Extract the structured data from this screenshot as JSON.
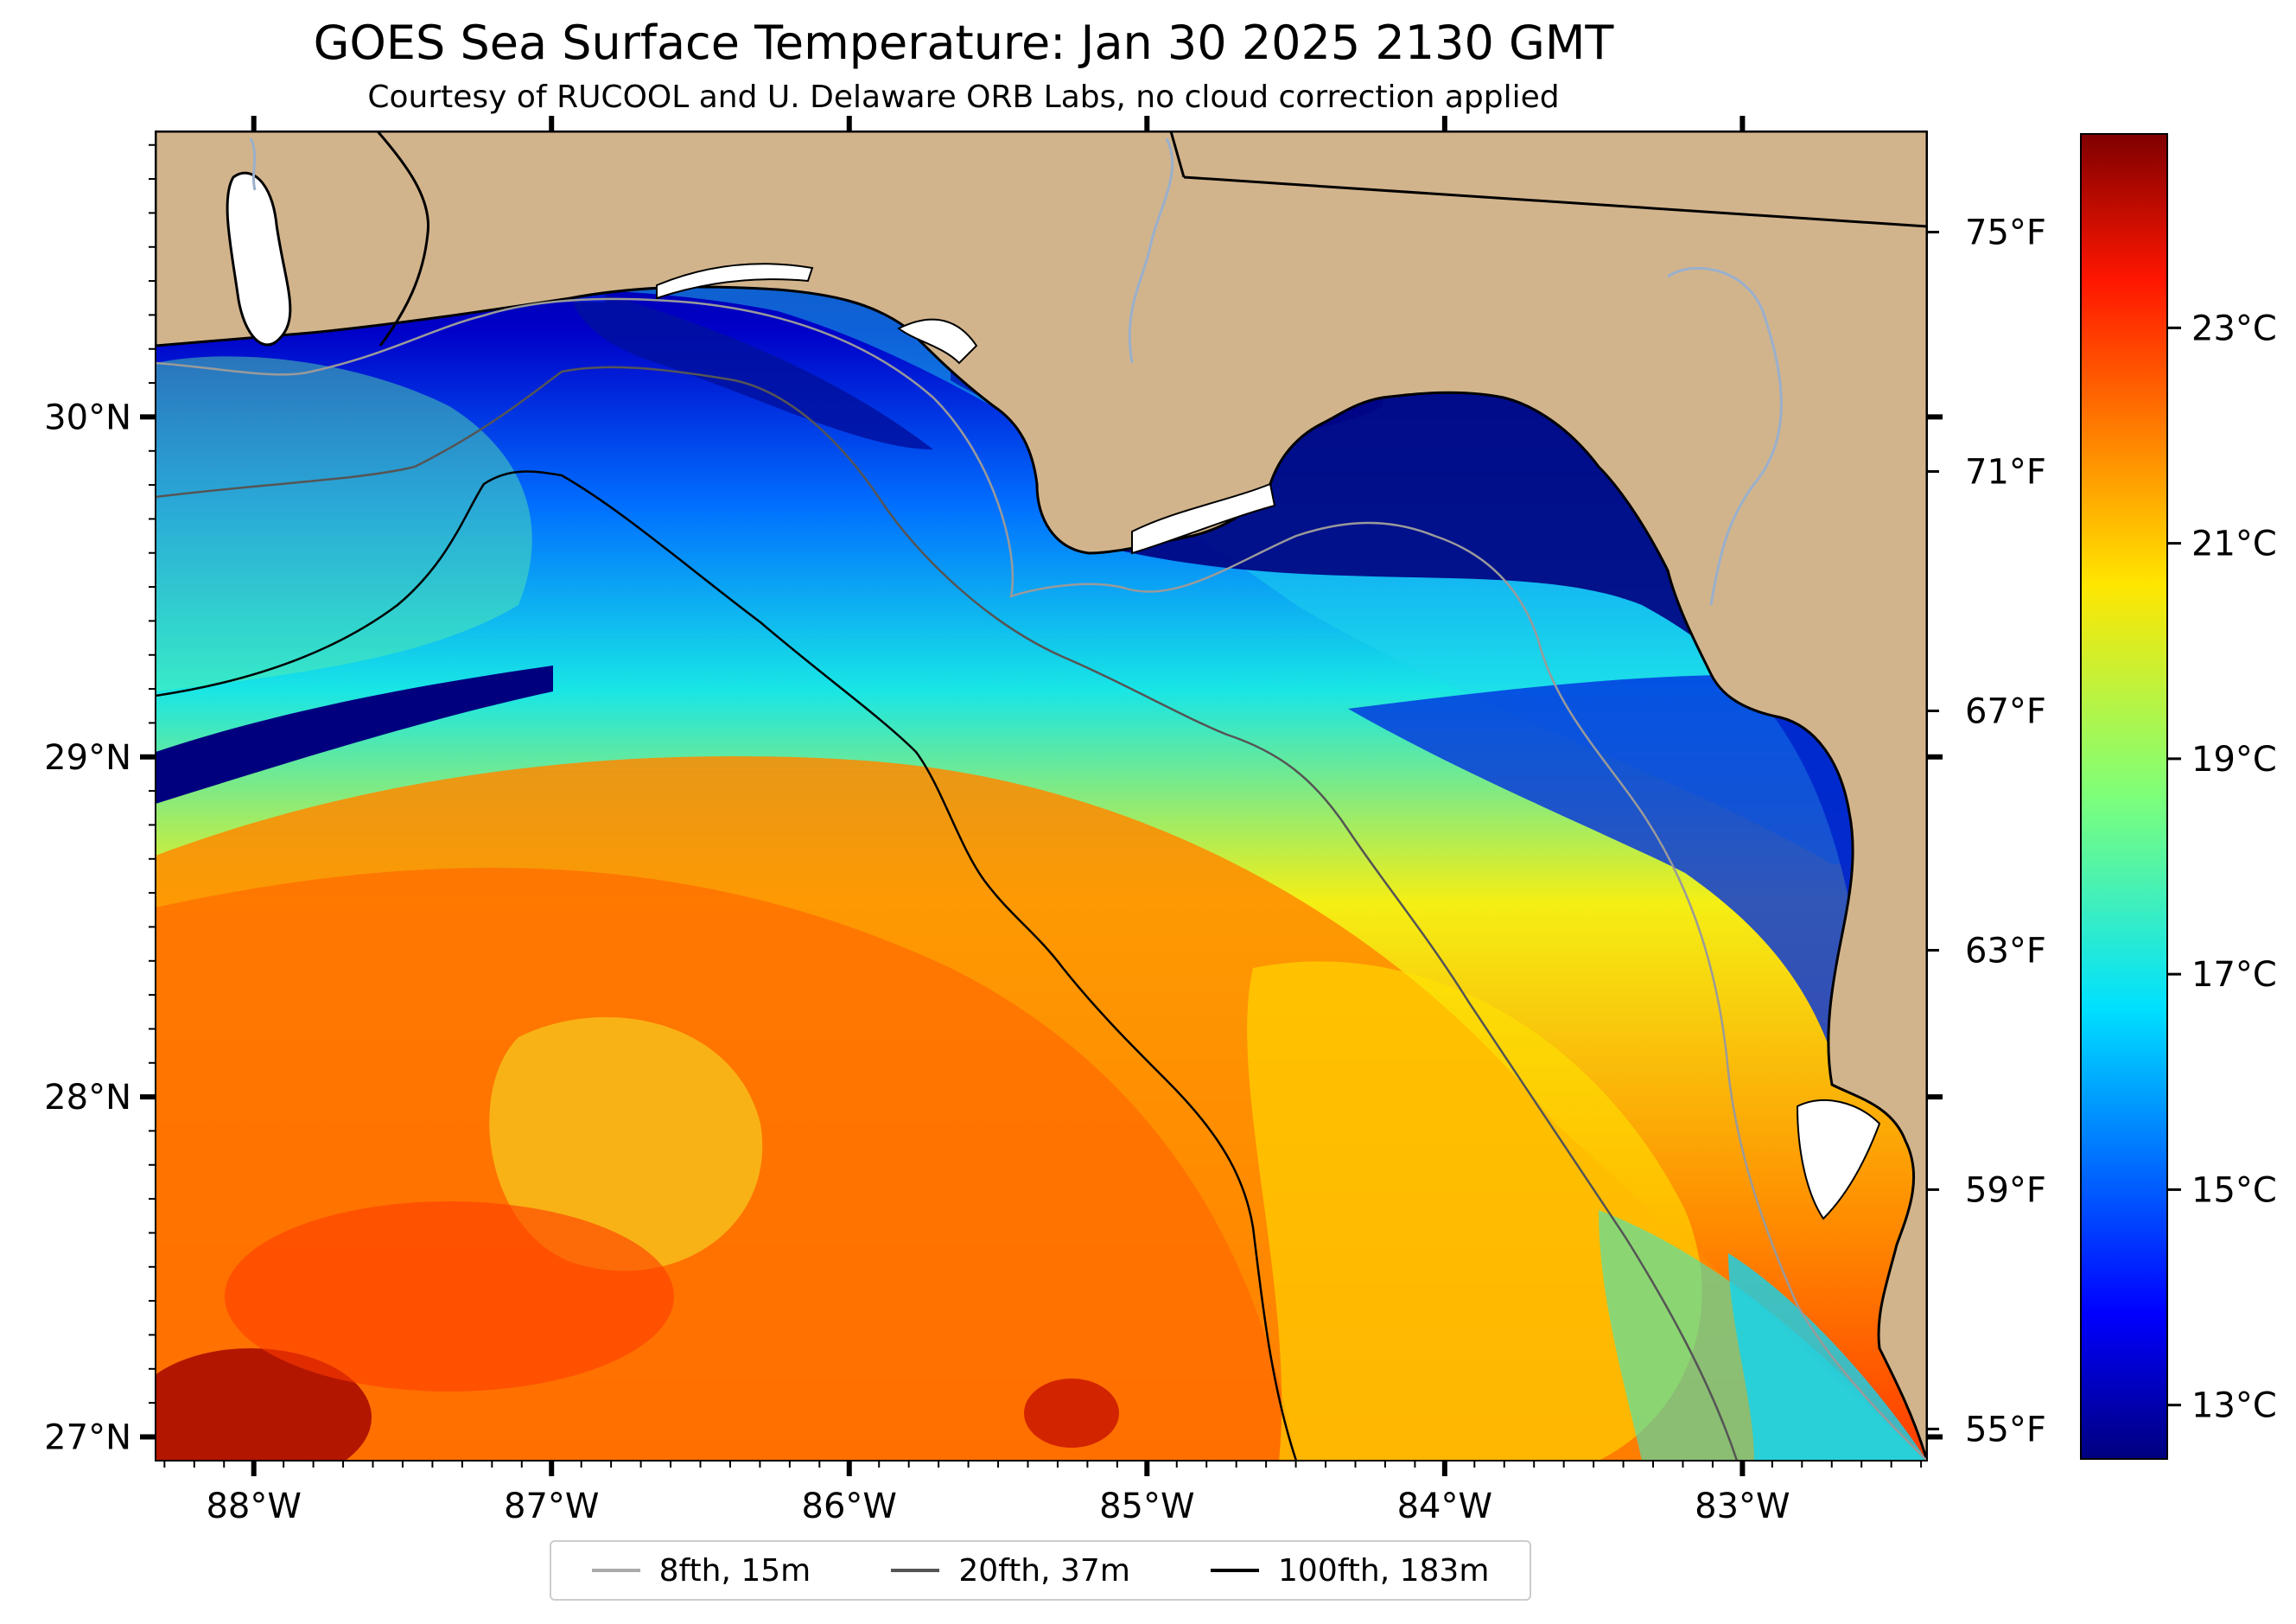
{
  "title": "GOES Sea Surface Temperature: Jan 30 2025 2130 GMT",
  "subtitle": "Courtesy of RUCOOL and U. Delaware ORB Labs, no cloud correction applied",
  "map": {
    "extent": {
      "lon": [
        -88.33,
        -82.38
      ],
      "lat": [
        26.93,
        30.84
      ]
    },
    "lat_ticks": [
      {
        "value": 30,
        "label": "30°N"
      },
      {
        "value": 29,
        "label": "29°N"
      },
      {
        "value": 28,
        "label": "28°N"
      },
      {
        "value": 27,
        "label": "27°N"
      }
    ],
    "lon_ticks": [
      {
        "value": -88,
        "label": "88°W"
      },
      {
        "value": -87,
        "label": "87°W"
      },
      {
        "value": -86,
        "label": "86°W"
      },
      {
        "value": -85,
        "label": "85°W"
      },
      {
        "value": -84,
        "label": "84°W"
      },
      {
        "value": -83,
        "label": "83°W"
      }
    ],
    "fahrenheit_ticks": [
      "75°F",
      "71°F",
      "67°F",
      "63°F",
      "59°F",
      "55°F"
    ],
    "land_color": "#d2b48c",
    "colors": {
      "warm": "#ff4a00",
      "hot": "#8b0000",
      "mid": "#f5ef14",
      "cool": "#18e6e6",
      "cold": "#001290"
    }
  },
  "colorbar": {
    "colormap": "jet",
    "range_c": [
      12.5,
      24.8
    ],
    "ticks": [
      {
        "value": 23,
        "label": "23°C"
      },
      {
        "value": 21,
        "label": "21°C"
      },
      {
        "value": 19,
        "label": "19°C"
      },
      {
        "value": 17,
        "label": "17°C"
      },
      {
        "value": 15,
        "label": "15°C"
      },
      {
        "value": 13,
        "label": "13°C"
      }
    ]
  },
  "legend": [
    {
      "label": "8fth, 15m",
      "color": "#aaaaaa"
    },
    {
      "label": "20fth, 37m",
      "color": "#555555"
    },
    {
      "label": "100fth, 183m",
      "color": "#000000"
    }
  ]
}
